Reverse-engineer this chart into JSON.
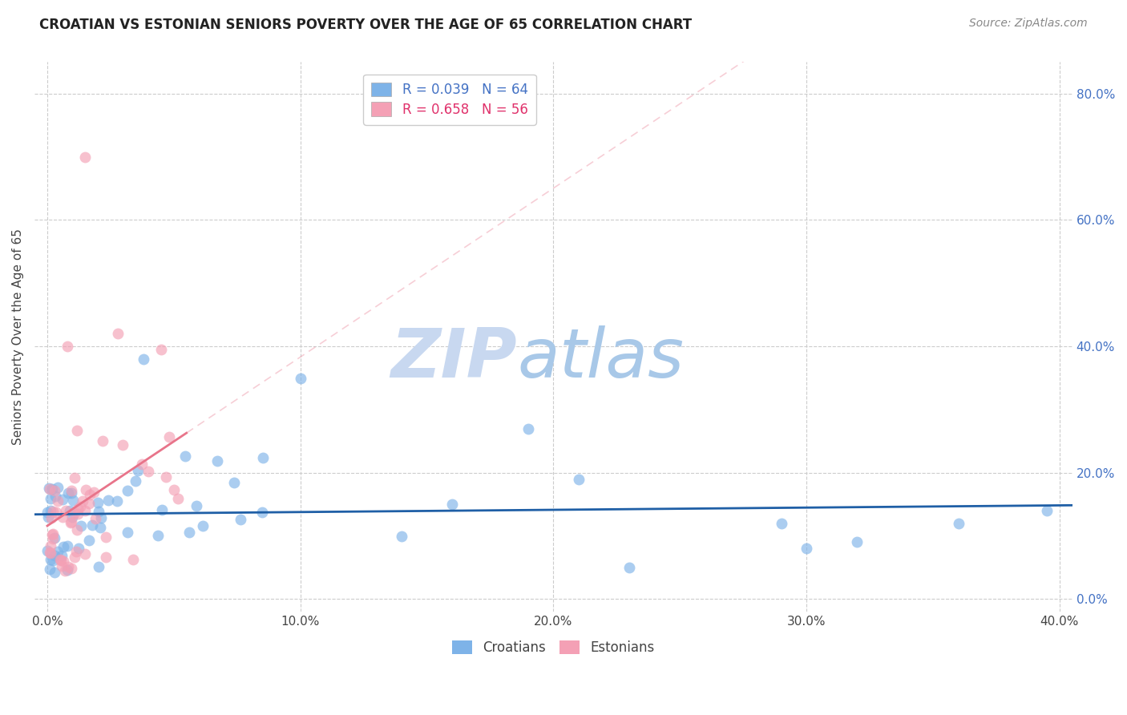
{
  "title": "CROATIAN VS ESTONIAN SENIORS POVERTY OVER THE AGE OF 65 CORRELATION CHART",
  "source": "Source: ZipAtlas.com",
  "ylabel": "Seniors Poverty Over the Age of 65",
  "xlim": [
    -0.005,
    0.405
  ],
  "ylim": [
    -0.02,
    0.85
  ],
  "xticks": [
    0.0,
    0.1,
    0.2,
    0.3,
    0.4
  ],
  "xtick_labels": [
    "0.0%",
    "10.0%",
    "20.0%",
    "30.0%",
    "40.0%"
  ],
  "yticks": [
    0.0,
    0.2,
    0.4,
    0.6,
    0.8
  ],
  "ytick_labels_right": [
    "0.0%",
    "20.0%",
    "40.0%",
    "60.0%",
    "80.0%"
  ],
  "grid_color": "#cccccc",
  "background_color": "#ffffff",
  "croatian_color": "#7EB3E8",
  "estonian_color": "#F4A0B5",
  "croatian_line_color": "#1F5FA6",
  "estonian_line_color": "#E8748A",
  "watermark_zip_color": "#C8D8F0",
  "watermark_atlas_color": "#A0C4E8",
  "R_croatian": 0.039,
  "N_croatian": 64,
  "R_estonian": 0.658,
  "N_estonian": 56,
  "title_fontsize": 12,
  "source_fontsize": 10,
  "tick_fontsize": 11,
  "label_fontsize": 11,
  "legend_fontsize": 12,
  "right_tick_color": "#4472C4"
}
